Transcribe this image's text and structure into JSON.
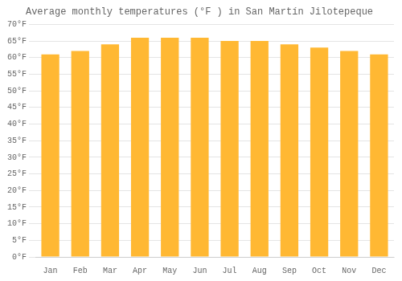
{
  "chart_data": {
    "type": "bar",
    "title": "Average monthly temperatures (°F ) in San Martín Jilotepeque",
    "categories": [
      "Jan",
      "Feb",
      "Mar",
      "Apr",
      "May",
      "Jun",
      "Jul",
      "Aug",
      "Sep",
      "Oct",
      "Nov",
      "Dec"
    ],
    "values": [
      61,
      62,
      64,
      66,
      66,
      66,
      65,
      65,
      64,
      63,
      62,
      61
    ],
    "color": "#FFB833",
    "ylim": [
      0,
      70
    ],
    "yticks": [
      {
        "value": 0,
        "label": "0°F"
      },
      {
        "value": 5,
        "label": "5°F"
      },
      {
        "value": 10,
        "label": "10°F"
      },
      {
        "value": 15,
        "label": "15°F"
      },
      {
        "value": 20,
        "label": "20°F"
      },
      {
        "value": 25,
        "label": "25°F"
      },
      {
        "value": 30,
        "label": "30°F"
      },
      {
        "value": 35,
        "label": "35°F"
      },
      {
        "value": 40,
        "label": "40°F"
      },
      {
        "value": 45,
        "label": "45°F"
      },
      {
        "value": 50,
        "label": "50°F"
      },
      {
        "value": 55,
        "label": "55°F"
      },
      {
        "value": 60,
        "label": "60°F"
      },
      {
        "value": 65,
        "label": "65°F"
      },
      {
        "value": 70,
        "label": "70°F"
      }
    ],
    "grid": true
  }
}
